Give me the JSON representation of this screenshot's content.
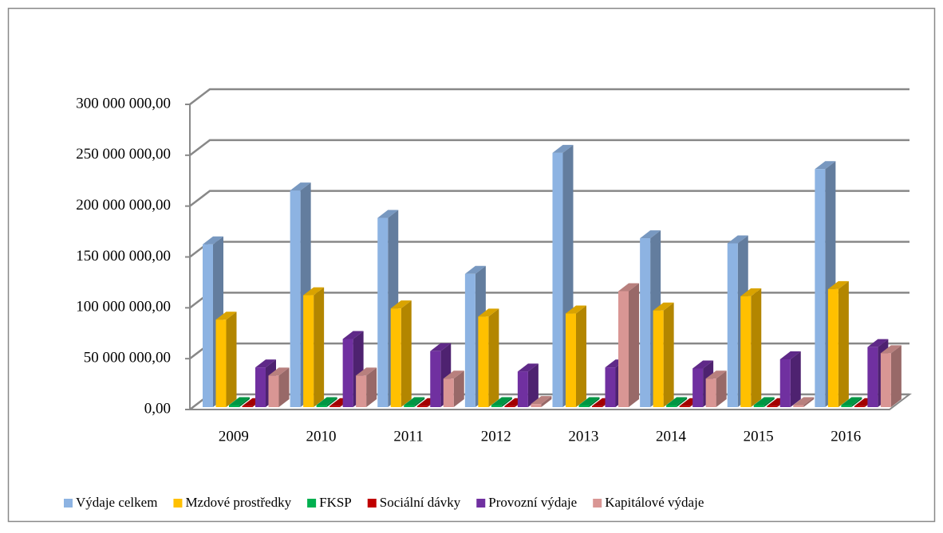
{
  "chart_data": {
    "type": "bar3d",
    "categories": [
      "2009",
      "2010",
      "2011",
      "2012",
      "2013",
      "2014",
      "2015",
      "2016"
    ],
    "series": [
      {
        "name": "Výdaje celkem",
        "color": "#8db3e2",
        "values": [
          160000000,
          213000000,
          186000000,
          131000000,
          250000000,
          166000000,
          161000000,
          234000000
        ]
      },
      {
        "name": "Mzdové prostředky",
        "color": "#ffc000",
        "values": [
          86000000,
          110000000,
          97000000,
          89000000,
          92000000,
          95000000,
          109000000,
          116000000
        ]
      },
      {
        "name": "FKSP",
        "color": "#00b050",
        "values": [
          2000000,
          2000000,
          2000000,
          2000000,
          2000000,
          2000000,
          2000000,
          2000000
        ]
      },
      {
        "name": "Sociální dávky",
        "color": "#c00000",
        "values": [
          1000000,
          1000000,
          1000000,
          1000000,
          1000000,
          1000000,
          1000000,
          1000000
        ]
      },
      {
        "name": "Provozní výdaje",
        "color": "#7030a0",
        "values": [
          39000000,
          67000000,
          55000000,
          35000000,
          39000000,
          38000000,
          47000000,
          59000000
        ]
      },
      {
        "name": "Kapitálové výdaje",
        "color": "#d99694",
        "values": [
          31000000,
          31000000,
          28000000,
          3000000,
          114000000,
          28000000,
          2000000,
          53000000
        ]
      }
    ],
    "ylim": [
      0,
      300000000
    ],
    "yticks": [
      {
        "value": 0,
        "label": "0,00"
      },
      {
        "value": 50000000,
        "label": "50 000 000,00"
      },
      {
        "value": 100000000,
        "label": "100 000 000,00"
      },
      {
        "value": 150000000,
        "label": "150 000 000,00"
      },
      {
        "value": 200000000,
        "label": "200 000 000,00"
      },
      {
        "value": 250000000,
        "label": "250 000 000,00"
      },
      {
        "value": 300000000,
        "label": "300 000 000,00"
      }
    ],
    "grid": true,
    "legend": "bottom"
  }
}
